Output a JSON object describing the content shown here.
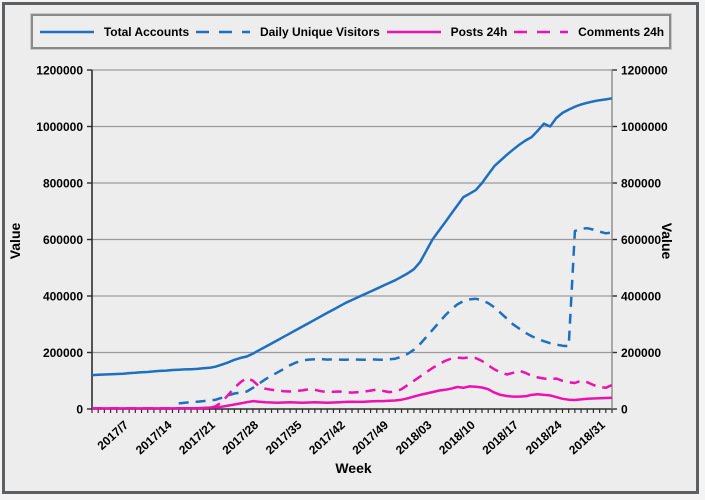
{
  "window": {
    "background": "#ededed",
    "frame_border": "#5e5f61"
  },
  "chart_data": {
    "type": "line",
    "title": "",
    "xlabel": "Week",
    "ylabel_left": "Value",
    "ylabel_right": "Value",
    "ylim": [
      0,
      1200000
    ],
    "y_ticks": [
      0,
      200000,
      400000,
      600000,
      800000,
      1000000,
      1200000
    ],
    "x_tick_labels": [
      "2017/7",
      "2017/14",
      "2017/21",
      "2017/28",
      "2017/35",
      "2017/42",
      "2017/49",
      "2018/03",
      "2018/10",
      "2018/17",
      "2018/24",
      "2018/31"
    ],
    "x_tick_weeks": [
      7,
      14,
      21,
      28,
      35,
      42,
      49,
      56,
      63,
      70,
      77,
      84
    ],
    "x_range_weeks": [
      1,
      85
    ],
    "grid": "horizontal",
    "grid_color": "#9b9b9b",
    "legend_position": "top",
    "series": [
      {
        "name": "Total Accounts",
        "color": "#1f6fbf",
        "dash": "solid",
        "start_week": 1,
        "values": [
          120000,
          121000,
          122000,
          123000,
          124000,
          125000,
          127000,
          128000,
          130000,
          131000,
          133000,
          135000,
          136000,
          138000,
          139000,
          140000,
          141000,
          142000,
          144000,
          146000,
          150000,
          157000,
          165000,
          174000,
          181000,
          186000,
          196000,
          208000,
          220000,
          232000,
          244000,
          256000,
          268000,
          280000,
          292000,
          304000,
          316000,
          328000,
          340000,
          352000,
          364000,
          376000,
          386000,
          396000,
          406000,
          416000,
          426000,
          436000,
          446000,
          456000,
          468000,
          480000,
          495000,
          520000,
          560000,
          600000,
          630000,
          660000,
          690000,
          720000,
          750000,
          762000,
          775000,
          800000,
          830000,
          860000,
          880000,
          900000,
          918000,
          935000,
          950000,
          962000,
          985000,
          1010000,
          1000000,
          1030000,
          1048000,
          1060000,
          1070000,
          1078000,
          1084000,
          1089000,
          1093000,
          1096000,
          1100000
        ]
      },
      {
        "name": "Daily Unique Visitors",
        "color": "#1f6fbf",
        "dash": "dashed",
        "start_week": 15,
        "values": [
          20000,
          22000,
          24000,
          26000,
          28000,
          30000,
          33000,
          40000,
          48000,
          55000,
          58000,
          62000,
          75000,
          90000,
          105000,
          118000,
          130000,
          142000,
          155000,
          165000,
          172000,
          175000,
          176000,
          177000,
          175000,
          176000,
          175000,
          174000,
          176000,
          175000,
          174000,
          176000,
          175000,
          174000,
          176000,
          178000,
          185000,
          195000,
          210000,
          230000,
          255000,
          280000,
          305000,
          330000,
          352000,
          370000,
          382000,
          388000,
          390000,
          385000,
          375000,
          360000,
          340000,
          320000,
          300000,
          285000,
          270000,
          258000,
          248000,
          240000,
          233000,
          228000,
          224000,
          222000,
          630000,
          638000,
          640000,
          635000,
          628000,
          622000,
          625000
        ]
      },
      {
        "name": "Posts 24h",
        "color": "#ee10b0",
        "dash": "solid",
        "start_week": 1,
        "values": [
          2000,
          2000,
          2000,
          2000,
          2000,
          2000,
          2000,
          2000,
          2000,
          2000,
          2000,
          2000,
          2000,
          2000,
          3000,
          3000,
          3000,
          3000,
          4000,
          5000,
          6000,
          8000,
          12000,
          16000,
          20000,
          24000,
          28000,
          26000,
          24000,
          23000,
          22000,
          23000,
          24000,
          23000,
          22000,
          23000,
          24000,
          23000,
          22000,
          23000,
          24000,
          25000,
          26000,
          25000,
          26000,
          27000,
          28000,
          28000,
          29000,
          30000,
          33000,
          38000,
          44000,
          50000,
          55000,
          60000,
          65000,
          68000,
          72000,
          78000,
          75000,
          80000,
          79000,
          76000,
          70000,
          58000,
          50000,
          46000,
          44000,
          44000,
          45000,
          50000,
          52000,
          50000,
          48000,
          42000,
          36000,
          33000,
          32000,
          34000,
          36000,
          37000,
          38000,
          39000,
          40000
        ]
      },
      {
        "name": "Comments 24h",
        "color": "#ee10b0",
        "dash": "dashed",
        "start_week": 1,
        "values": [
          2000,
          2000,
          2000,
          2000,
          2000,
          2000,
          2000,
          2000,
          2000,
          2000,
          2000,
          2000,
          2000,
          2000,
          2000,
          2000,
          2000,
          2000,
          2000,
          4000,
          10000,
          25000,
          50000,
          75000,
          95000,
          110000,
          100000,
          80000,
          72000,
          68000,
          65000,
          63000,
          62000,
          64000,
          66000,
          70000,
          68000,
          63000,
          60000,
          61000,
          62000,
          60000,
          58000,
          60000,
          62000,
          65000,
          69000,
          64000,
          60000,
          62000,
          70000,
          85000,
          100000,
          115000,
          130000,
          145000,
          158000,
          170000,
          178000,
          182000,
          180000,
          183000,
          180000,
          170000,
          155000,
          140000,
          130000,
          122000,
          128000,
          136000,
          128000,
          118000,
          112000,
          108000,
          105000,
          108000,
          100000,
          95000,
          92000,
          100000,
          95000,
          85000,
          78000,
          75000,
          85000
        ]
      }
    ]
  }
}
